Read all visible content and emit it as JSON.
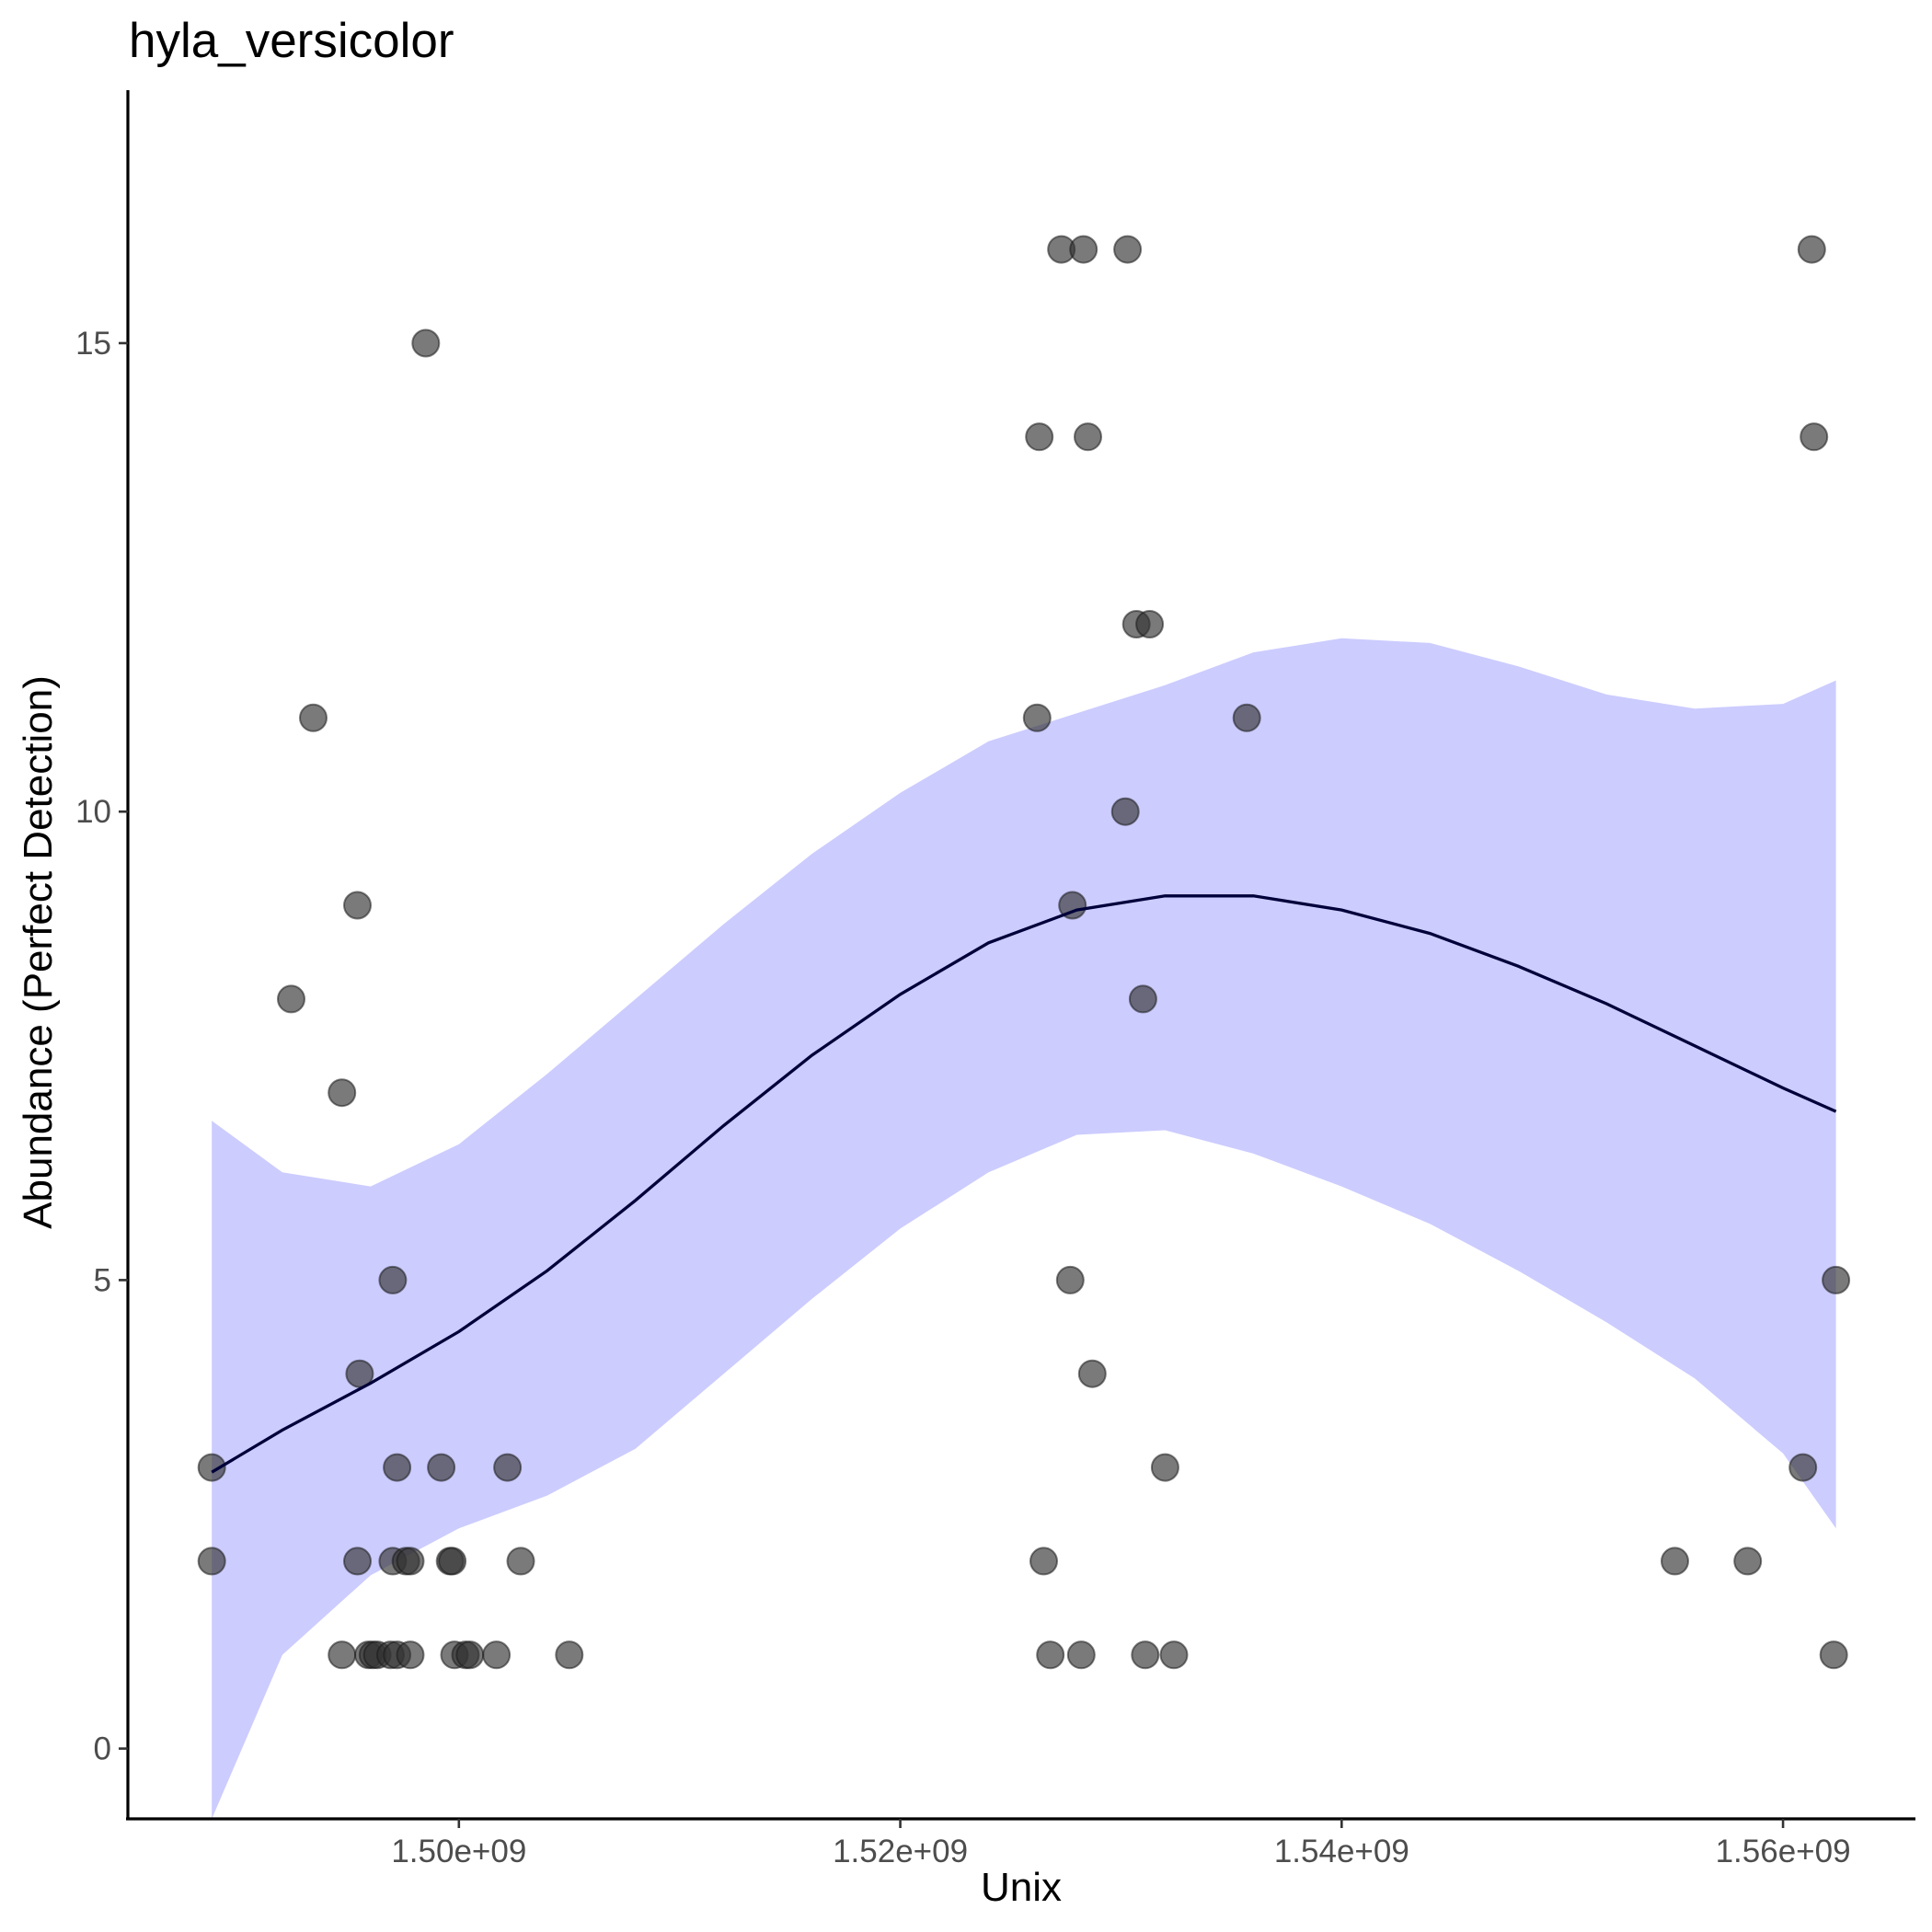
{
  "chart_data": {
    "type": "scatter",
    "title": "hyla_versicolor",
    "xlabel": "Unix",
    "ylabel": "Abundance (Perfect Detection)",
    "xlim": [
      1485000000,
      1566000000
    ],
    "ylim": [
      -0.75,
      17.7
    ],
    "x_ticks": [
      1500000000,
      1520000000,
      1540000000,
      1560000000
    ],
    "x_tick_labels": [
      "1.50e+09",
      "1.52e+09",
      "1.54e+09",
      "1.56e+09"
    ],
    "y_ticks": [
      0,
      5,
      10,
      15
    ],
    "y_tick_labels": [
      "0",
      "5",
      "10",
      "15"
    ],
    "grid": false,
    "legend": "none",
    "point_color": "#333333",
    "point_opacity": 0.65,
    "ribbon_color": "#ccccff",
    "line_color": "#00003a",
    "points": [
      {
        "x": 1488800000,
        "y": 3
      },
      {
        "x": 1488800000,
        "y": 2
      },
      {
        "x": 1492400000,
        "y": 8
      },
      {
        "x": 1493400000,
        "y": 11
      },
      {
        "x": 1494700000,
        "y": 7
      },
      {
        "x": 1494700000,
        "y": 1
      },
      {
        "x": 1495400000,
        "y": 9
      },
      {
        "x": 1495400000,
        "y": 2
      },
      {
        "x": 1495500000,
        "y": 4
      },
      {
        "x": 1495900000,
        "y": 1
      },
      {
        "x": 1496100000,
        "y": 1
      },
      {
        "x": 1496300000,
        "y": 1
      },
      {
        "x": 1496900000,
        "y": 1
      },
      {
        "x": 1497000000,
        "y": 5
      },
      {
        "x": 1497000000,
        "y": 2
      },
      {
        "x": 1497200000,
        "y": 3
      },
      {
        "x": 1497200000,
        "y": 1
      },
      {
        "x": 1497600000,
        "y": 2
      },
      {
        "x": 1497800000,
        "y": 2
      },
      {
        "x": 1497800000,
        "y": 1
      },
      {
        "x": 1498500000,
        "y": 15
      },
      {
        "x": 1499200000,
        "y": 3
      },
      {
        "x": 1499600000,
        "y": 2
      },
      {
        "x": 1499700000,
        "y": 2
      },
      {
        "x": 1499800000,
        "y": 1
      },
      {
        "x": 1500300000,
        "y": 1
      },
      {
        "x": 1500500000,
        "y": 1
      },
      {
        "x": 1501700000,
        "y": 1
      },
      {
        "x": 1502200000,
        "y": 3
      },
      {
        "x": 1502800000,
        "y": 2
      },
      {
        "x": 1505000000,
        "y": 1
      },
      {
        "x": 1526200000,
        "y": 11
      },
      {
        "x": 1526300000,
        "y": 14
      },
      {
        "x": 1526500000,
        "y": 2
      },
      {
        "x": 1526800000,
        "y": 1
      },
      {
        "x": 1527300000,
        "y": 16
      },
      {
        "x": 1527700000,
        "y": 5
      },
      {
        "x": 1527800000,
        "y": 9
      },
      {
        "x": 1528200000,
        "y": 1
      },
      {
        "x": 1528300000,
        "y": 16
      },
      {
        "x": 1528500000,
        "y": 14
      },
      {
        "x": 1528700000,
        "y": 4
      },
      {
        "x": 1530200000,
        "y": 10
      },
      {
        "x": 1530300000,
        "y": 16
      },
      {
        "x": 1530700000,
        "y": 12
      },
      {
        "x": 1531000000,
        "y": 8
      },
      {
        "x": 1531100000,
        "y": 1
      },
      {
        "x": 1531300000,
        "y": 12
      },
      {
        "x": 1532000000,
        "y": 3
      },
      {
        "x": 1532400000,
        "y": 1
      },
      {
        "x": 1535700000,
        "y": 11
      },
      {
        "x": 1555100000,
        "y": 2
      },
      {
        "x": 1558400000,
        "y": 2
      },
      {
        "x": 1560900000,
        "y": 3
      },
      {
        "x": 1561300000,
        "y": 16
      },
      {
        "x": 1561400000,
        "y": 14
      },
      {
        "x": 1562300000,
        "y": 1
      },
      {
        "x": 1562400000,
        "y": 5
      }
    ],
    "smooth": {
      "x": [
        1488800000,
        1492000000,
        1496000000,
        1500000000,
        1504000000,
        1508000000,
        1512000000,
        1516000000,
        1520000000,
        1524000000,
        1528000000,
        1532000000,
        1536000000,
        1540000000,
        1544000000,
        1548000000,
        1552000000,
        1556000000,
        1560000000,
        1562400000
      ],
      "y": [
        2.95,
        3.4,
        3.9,
        4.45,
        5.1,
        5.85,
        6.65,
        7.4,
        8.05,
        8.6,
        8.95,
        9.1,
        9.1,
        8.95,
        8.7,
        8.35,
        7.95,
        7.5,
        7.05,
        6.8
      ],
      "lower": [
        -0.75,
        1.0,
        1.85,
        2.35,
        2.7,
        3.2,
        4.0,
        4.8,
        5.55,
        6.15,
        6.55,
        6.6,
        6.35,
        6.0,
        5.6,
        5.1,
        4.55,
        3.95,
        3.15,
        2.35
      ],
      "upper": [
        6.7,
        6.15,
        6.0,
        6.45,
        7.2,
        8.0,
        8.8,
        9.55,
        10.2,
        10.75,
        11.05,
        11.35,
        11.7,
        11.85,
        11.8,
        11.55,
        11.25,
        11.1,
        11.15,
        11.4
      ]
    }
  }
}
